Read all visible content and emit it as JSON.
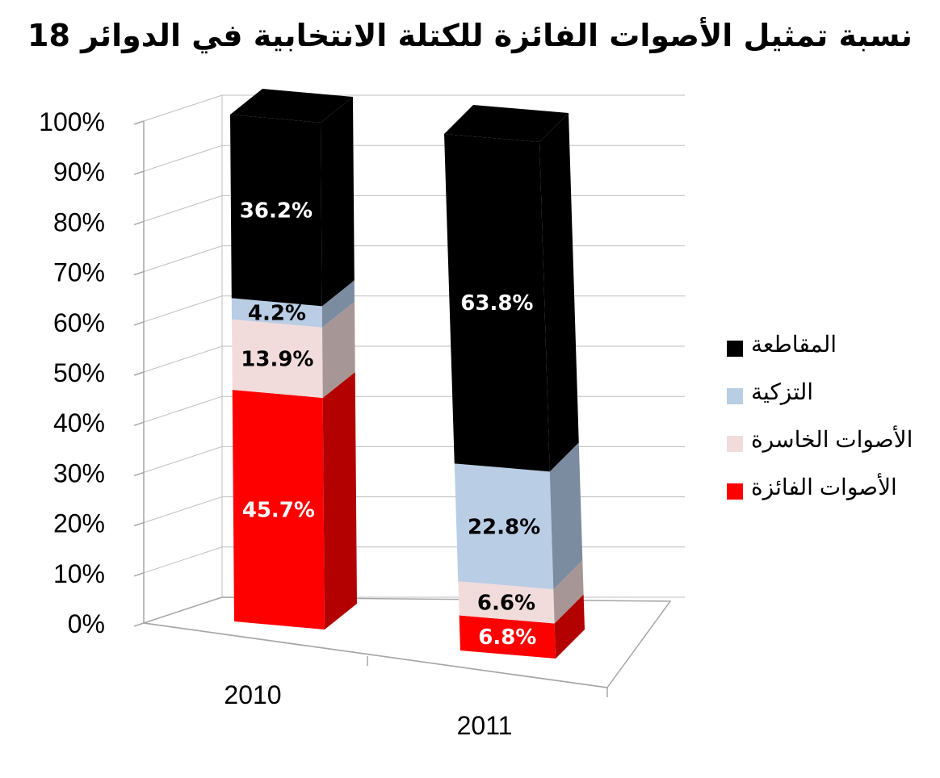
{
  "chart_data": {
    "type": "bar",
    "title": "نسبة تمثيل الأصوات الفائزة للكتلة الانتخابية في الدوائر 18",
    "categories": [
      "2010",
      "2011"
    ],
    "stacked": true,
    "percent_stacked": true,
    "ylim": [
      0,
      100
    ],
    "yticks": [
      "0%",
      "10%",
      "20%",
      "30%",
      "40%",
      "50%",
      "60%",
      "70%",
      "80%",
      "90%",
      "100%"
    ],
    "series": [
      {
        "name": "الأصوات الفائزة",
        "values": [
          45.7,
          6.8
        ],
        "labels": [
          "45.7%",
          "6.8%"
        ],
        "color": "#ff0000",
        "side": "#b30000",
        "label_color": "#ffffff"
      },
      {
        "name": "الأصوات الخاسرة",
        "values": [
          13.9,
          6.6
        ],
        "labels": [
          "13.9%",
          "6.6%"
        ],
        "color": "#f2dcdb",
        "side": "#a69695",
        "label_color": "#000000"
      },
      {
        "name": "التزكية",
        "values": [
          4.2,
          22.8
        ],
        "labels": [
          "4.2%",
          "22.8%"
        ],
        "color": "#b9cde5",
        "side": "#7b8ba0",
        "label_color": "#000000"
      },
      {
        "name": "المقاطعة",
        "values": [
          36.2,
          63.8
        ],
        "labels": [
          "36.2%",
          "63.8%"
        ],
        "color": "#000000",
        "side": "#000000",
        "label_color": "#ffffff"
      }
    ],
    "legend": "right",
    "grid": true
  }
}
